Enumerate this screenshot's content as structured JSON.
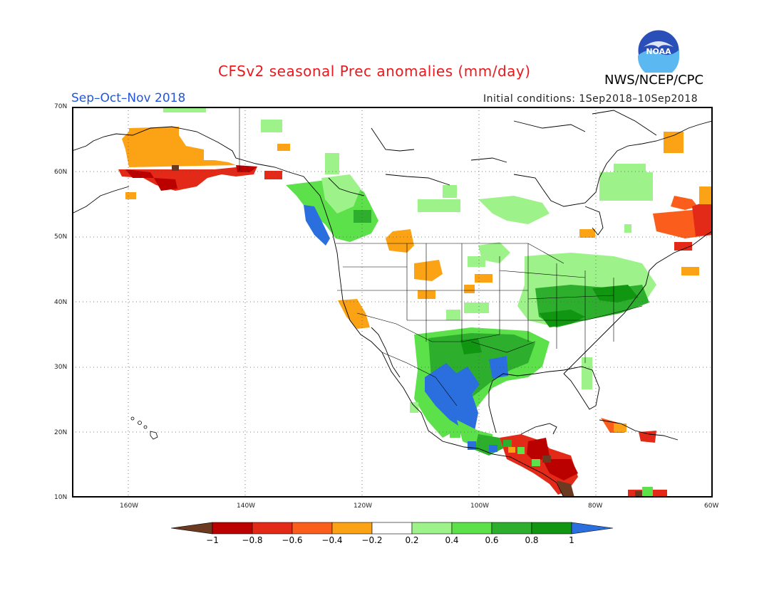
{
  "header": {
    "title": "CFSv2 seasonal Prec anomalies (mm/day)",
    "agency": "NWS/NCEP/CPC",
    "logo_text": "NOAA",
    "season": "Sep–Oct–Nov 2018",
    "initial_conditions": "Initial conditions: 1Sep2018–10Sep2018"
  },
  "map": {
    "region": "North America",
    "lat_labels": [
      "70N",
      "60N",
      "50N",
      "40N",
      "30N",
      "20N",
      "10N"
    ],
    "lon_labels": [
      "160W",
      "140W",
      "120W",
      "100W",
      "80W",
      "60W"
    ],
    "gridlines": "dotted"
  },
  "colorbar": {
    "labels": [
      "−1",
      "−0.8",
      "−0.6",
      "−0.4",
      "−0.2",
      "0.2",
      "0.4",
      "0.6",
      "0.8",
      "1"
    ],
    "colors": [
      "#6b3a20",
      "#bb0000",
      "#e32a18",
      "#fb5e1c",
      "#fba314",
      "#ffffff",
      "#9ef28a",
      "#5ce14a",
      "#2daf2d",
      "#119611",
      "#2a6fdd"
    ]
  },
  "anomaly_palette": {
    "brown": "#6b3a20",
    "dark_red": "#bb0000",
    "red": "#e32a18",
    "orange_red": "#fb5e1c",
    "orange": "#fba314",
    "light_green": "#9ef28a",
    "green": "#5ce14a",
    "mid_green": "#2daf2d",
    "dark_green": "#119611",
    "blue": "#2a6fdd"
  }
}
